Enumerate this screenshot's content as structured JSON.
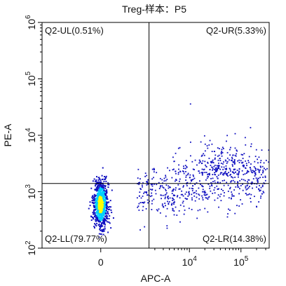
{
  "chart_data": {
    "type": "scatter",
    "title": "Treg-样本：P5",
    "xlabel": "APC-A",
    "ylabel": "PE-A",
    "x_scale": "biexponential",
    "y_scale": "log",
    "x_ticks": [
      {
        "value": 0,
        "label": "0",
        "exp": ""
      },
      {
        "value": 10000,
        "label": "10",
        "exp": "4"
      },
      {
        "value": 100000,
        "label": "10",
        "exp": "5"
      }
    ],
    "y_ticks": [
      {
        "value": 100,
        "label": "10",
        "exp": "2"
      },
      {
        "value": 1000,
        "label": "10",
        "exp": "3"
      },
      {
        "value": 10000,
        "label": "10",
        "exp": "4"
      },
      {
        "value": 100000,
        "label": "10",
        "exp": "5"
      },
      {
        "value": 1000000,
        "label": "10",
        "exp": "6"
      }
    ],
    "ylim": [
      100,
      1000000
    ],
    "gate": {
      "x": 1500,
      "y": 1400
    },
    "quadrants": [
      {
        "id": "Q2-UL",
        "label": "Q2-UL(0.51%)",
        "percent": 0.51
      },
      {
        "id": "Q2-UR",
        "label": "Q2-UR(5.33%)",
        "percent": 5.33
      },
      {
        "id": "Q2-LL",
        "label": "Q2-LL(79.77%)",
        "percent": 79.77
      },
      {
        "id": "Q2-LR",
        "label": "Q2-LR(14.38%)",
        "percent": 14.38
      }
    ],
    "populations": [
      {
        "center_x": 0,
        "center_y": 600,
        "count": 900,
        "shape": "dense-core"
      },
      {
        "center_x": 8000,
        "center_y": 1100,
        "count": 500,
        "shape": "diffuse-band"
      },
      {
        "center_x": 40000,
        "center_y": 2200,
        "count": 260,
        "shape": "diffuse-upper"
      }
    ],
    "colors": {
      "core": "#ffff00",
      "mid": "#00d0ff",
      "sparse": "#1010c0",
      "axis": "#000000",
      "gate": "#000000"
    }
  }
}
